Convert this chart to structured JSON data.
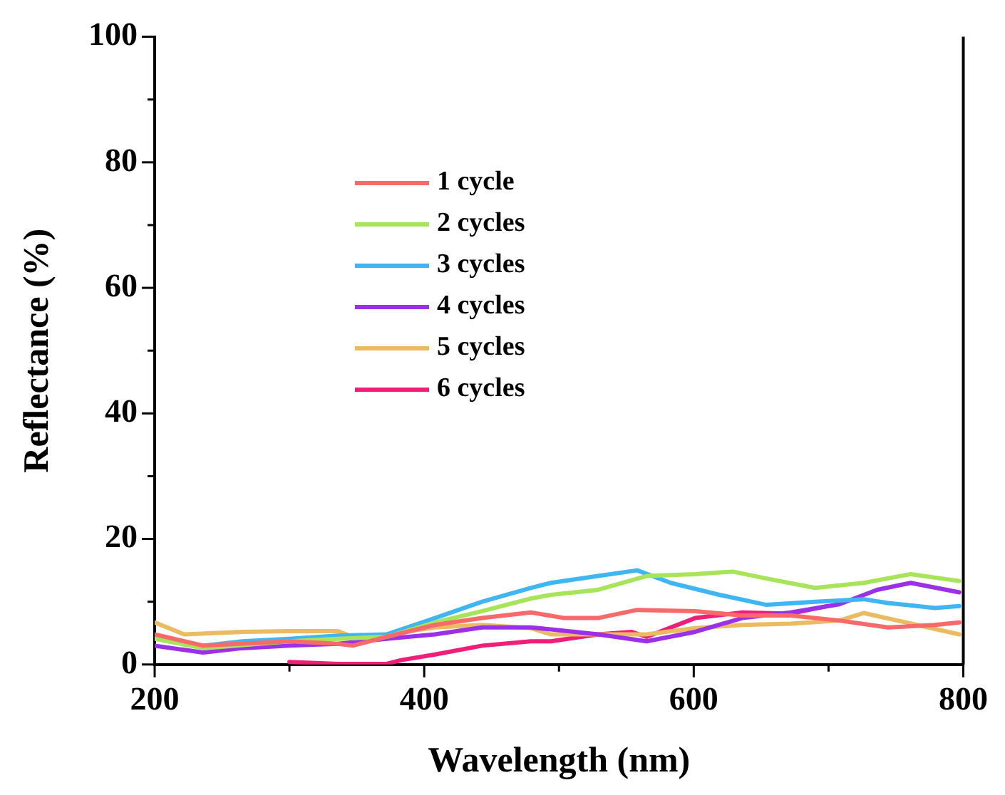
{
  "chart_data": {
    "type": "line",
    "xlabel": "Wavelength (nm)",
    "ylabel": "Reflectance (%)",
    "xlim": [
      200,
      800
    ],
    "xticks": [
      200,
      {
        "value": 300,
        "label": null
      },
      400,
      {
        "value": 500,
        "label": null
      },
      600,
      {
        "value": 700,
        "label": null
      },
      800
    ],
    "ylim": [
      0,
      100
    ],
    "yticks": [
      0,
      {
        "value": 10,
        "label": null
      },
      20,
      {
        "value": 30,
        "label": null
      },
      40,
      {
        "value": 50,
        "label": null
      },
      60,
      {
        "value": 70,
        "label": null
      },
      80,
      {
        "value": 90,
        "label": null
      },
      100
    ],
    "grid": false,
    "legend": "top left",
    "marker": "none",
    "line_style": "solid",
    "series": [
      {
        "name": "1 cycle",
        "color": "#f86a6a",
        "x": [
          200,
          236,
          300,
          336,
          347,
          372,
          408,
          443,
          479,
          504,
          529,
          558,
          601,
          636,
          672,
          708,
          744,
          779,
          797
        ],
        "values": [
          4.8,
          3.0,
          3.7,
          3.3,
          3.0,
          4.4,
          6.3,
          7.4,
          8.3,
          7.4,
          7.4,
          8.7,
          8.5,
          7.8,
          7.8,
          7.0,
          5.9,
          6.3,
          6.7
        ]
      },
      {
        "name": "2 cycles",
        "color": "#a8e45a",
        "x": [
          200,
          236,
          300,
          336,
          372,
          408,
          443,
          479,
          494,
          529,
          565,
          601,
          629,
          654,
          690,
          726,
          761,
          797
        ],
        "values": [
          4.1,
          2.6,
          3.7,
          4.1,
          4.4,
          6.7,
          8.5,
          10.5,
          11.1,
          11.9,
          14.1,
          14.4,
          14.8,
          13.7,
          12.2,
          13.0,
          14.4,
          13.3
        ]
      },
      {
        "name": "3 cycles",
        "color": "#3fb6f2",
        "x": [
          200,
          236,
          265,
          300,
          336,
          372,
          408,
          443,
          479,
          494,
          529,
          558,
          583,
          619,
          654,
          690,
          726,
          744,
          779,
          797
        ],
        "values": [
          4.3,
          3.0,
          3.7,
          4.1,
          4.6,
          4.8,
          7.4,
          10.0,
          12.2,
          13.0,
          14.1,
          15.0,
          13.0,
          11.1,
          9.5,
          10.0,
          10.4,
          9.8,
          9.0,
          9.3
        ]
      },
      {
        "name": "4 cycles",
        "color": "#9b30e8",
        "x": [
          200,
          236,
          265,
          300,
          336,
          372,
          408,
          443,
          479,
          494,
          529,
          565,
          601,
          636,
          672,
          708,
          736,
          761,
          797
        ],
        "values": [
          3.0,
          1.9,
          2.6,
          3.0,
          3.3,
          4.1,
          4.8,
          5.9,
          5.9,
          5.6,
          4.8,
          3.7,
          5.2,
          7.4,
          8.3,
          9.6,
          11.9,
          13.0,
          11.5
        ]
      },
      {
        "name": "5 cycles",
        "color": "#ebbb62",
        "x": [
          200,
          222,
          265,
          300,
          336,
          347,
          372,
          408,
          443,
          479,
          494,
          565,
          601,
          636,
          672,
          708,
          726,
          797
        ],
        "values": [
          6.7,
          4.8,
          5.2,
          5.3,
          5.3,
          4.4,
          4.8,
          5.9,
          6.3,
          5.8,
          4.8,
          4.8,
          5.8,
          6.3,
          6.5,
          7.0,
          8.2,
          4.8
        ]
      },
      {
        "name": "6 cycles",
        "color": "#f01e78",
        "x": [
          300,
          336,
          372,
          383,
          408,
          443,
          479,
          494,
          529,
          554,
          565,
          601,
          636,
          672,
          699
        ],
        "values": [
          0.4,
          0.1,
          0.1,
          0.7,
          1.6,
          3.0,
          3.7,
          3.7,
          4.8,
          5.2,
          4.4,
          7.4,
          8.3,
          8.1,
          9.3
        ]
      }
    ]
  }
}
